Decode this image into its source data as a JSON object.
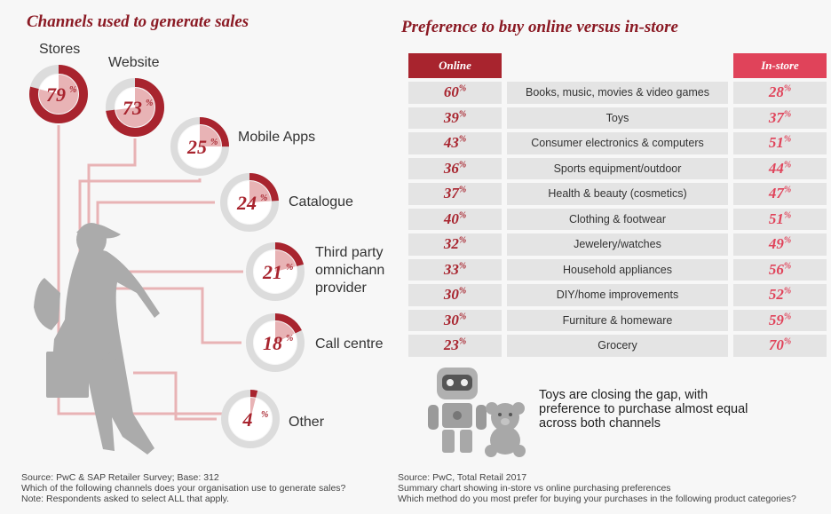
{
  "left": {
    "title": "Channels used to generate sales",
    "source_lines": [
      "Source: PwC & SAP Retailer Survey; Base: 312",
      "Which of the following channels does your organisation use to generate sales?",
      "Note: Respondents asked to select ALL that apply."
    ]
  },
  "right": {
    "title": "Preference to buy online versus in-store",
    "callout": "Toys are closing the gap, with preference to purchase almost equal across both channels",
    "source_lines": [
      "Source: PwC, Total Retail 2017",
      "Summary chart showing in-store vs online purchasing preferences",
      "Which method do you most prefer for buying your purchases in the following product categories?"
    ]
  },
  "colors": {
    "dark_red": "#a8242e",
    "pink": "#e0435a",
    "light_pink": "#e8b3b5",
    "track": "#dcdcdc",
    "grey": "#ababab"
  },
  "icons": [
    "woman-shopper-icon",
    "robot-toy-icon",
    "teddy-bear-icon"
  ],
  "chart_data": [
    {
      "type": "pie",
      "variant": "donut",
      "title": "Channels used to generate sales",
      "unit": "%",
      "categories": [
        "Stores",
        "Website",
        "Mobile Apps",
        "Catalogue",
        "Third party omnichannel provider",
        "Call centre",
        "Other"
      ],
      "label_lines": [
        [
          "Stores"
        ],
        [
          "Website"
        ],
        [
          "Mobile Apps"
        ],
        [
          "Catalogue"
        ],
        [
          "Third party",
          "omnichann",
          "provider"
        ],
        [
          "Call centre"
        ],
        [
          "Other"
        ]
      ],
      "values": [
        79,
        73,
        25,
        24,
        21,
        18,
        4
      ]
    },
    {
      "type": "table",
      "title": "Preference to buy online versus in-store",
      "columns": [
        "Online",
        "",
        "In-store"
      ],
      "unit": "%",
      "categories": [
        "Books, music, movies & video games",
        "Toys",
        "Consumer electronics & computers",
        "Sports equipment/outdoor",
        "Health & beauty (cosmetics)",
        "Clothing & footwear",
        "Jewelery/watches",
        "Household appliances",
        "DIY/home improvements",
        "Furniture & homeware",
        "Grocery"
      ],
      "series": [
        {
          "name": "Online",
          "values": [
            60,
            39,
            43,
            36,
            37,
            40,
            32,
            33,
            30,
            30,
            23
          ]
        },
        {
          "name": "In-store",
          "values": [
            28,
            37,
            51,
            44,
            47,
            51,
            49,
            56,
            52,
            59,
            70
          ]
        }
      ]
    }
  ]
}
